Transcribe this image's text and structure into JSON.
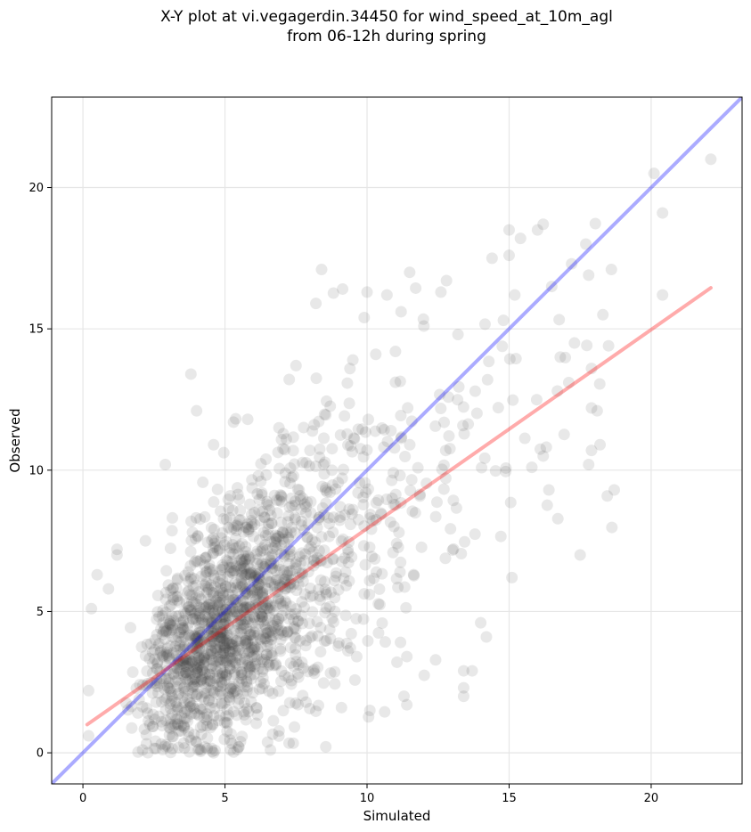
{
  "title_line1": "X-Y plot at vi.vegagerdin.34450 for wind_speed_at_10m_agl",
  "title_line2": "from 06-12h during spring",
  "chart_data": {
    "type": "scatter",
    "title": "X-Y plot at vi.vegagerdin.34450 for wind_speed_at_10m_agl from 06-12h during spring",
    "xlabel": "Simulated",
    "ylabel": "Observed",
    "xlim": [
      -1.1,
      23.2
    ],
    "ylim": [
      -1.1,
      23.2
    ],
    "xticks": [
      0,
      5,
      10,
      15,
      20
    ],
    "yticks": [
      0,
      5,
      10,
      15,
      20
    ],
    "xtick_labels": [
      "0",
      "5",
      "10",
      "15",
      "20"
    ],
    "ytick_labels": [
      "0",
      "5",
      "10",
      "15",
      "20"
    ],
    "grid": true,
    "point_color": "#404040",
    "point_alpha": 0.12,
    "lines": [
      {
        "role": "one-to-one",
        "color": "#0000ff",
        "x": [
          -1.1,
          23.2
        ],
        "y": [
          -1.1,
          23.2
        ]
      },
      {
        "role": "regression",
        "color": "#ff0000",
        "x": [
          0.15,
          22.1
        ],
        "y": [
          1.0,
          16.45
        ]
      }
    ],
    "outliers": [
      {
        "x": 22.1,
        "y": 21.0
      },
      {
        "x": 20.1,
        "y": 20.5
      },
      {
        "x": 20.4,
        "y": 19.1
      },
      {
        "x": 20.4,
        "y": 16.2
      },
      {
        "x": 16.2,
        "y": 18.7
      },
      {
        "x": 16.0,
        "y": 18.5
      },
      {
        "x": 15.4,
        "y": 18.2
      },
      {
        "x": 15.0,
        "y": 18.5
      },
      {
        "x": 17.7,
        "y": 18.0
      },
      {
        "x": 18.6,
        "y": 17.1
      },
      {
        "x": 17.8,
        "y": 16.9
      },
      {
        "x": 17.2,
        "y": 17.3
      },
      {
        "x": 16.5,
        "y": 16.5
      },
      {
        "x": 18.3,
        "y": 15.5
      },
      {
        "x": 18.5,
        "y": 14.4
      },
      {
        "x": 17.3,
        "y": 14.5
      },
      {
        "x": 17.9,
        "y": 13.6
      },
      {
        "x": 17.1,
        "y": 13.1
      },
      {
        "x": 18.7,
        "y": 9.3
      },
      {
        "x": 17.5,
        "y": 7.0
      },
      {
        "x": 18.1,
        "y": 12.1
      },
      {
        "x": 17.9,
        "y": 12.2
      },
      {
        "x": 18.2,
        "y": 10.9
      },
      {
        "x": 17.8,
        "y": 10.2
      },
      {
        "x": 17.9,
        "y": 10.7
      },
      {
        "x": 16.2,
        "y": 10.5
      },
      {
        "x": 15.8,
        "y": 10.1
      },
      {
        "x": 16.4,
        "y": 9.3
      },
      {
        "x": 15.1,
        "y": 6.2
      },
      {
        "x": 14.2,
        "y": 4.1
      },
      {
        "x": 14.0,
        "y": 4.6
      },
      {
        "x": 13.4,
        "y": 2.9
      },
      {
        "x": 13.7,
        "y": 2.9
      },
      {
        "x": 13.4,
        "y": 2.3
      },
      {
        "x": 13.4,
        "y": 2.0
      },
      {
        "x": 10.1,
        "y": 1.5
      },
      {
        "x": 11.3,
        "y": 2.0
      },
      {
        "x": 11.4,
        "y": 1.7
      },
      {
        "x": 9.1,
        "y": 1.6
      },
      {
        "x": 8.4,
        "y": 17.1
      },
      {
        "x": 8.2,
        "y": 15.9
      },
      {
        "x": 3.8,
        "y": 13.4
      },
      {
        "x": 4.0,
        "y": 12.1
      },
      {
        "x": 14.4,
        "y": 17.5
      },
      {
        "x": 15.0,
        "y": 17.6
      },
      {
        "x": 11.5,
        "y": 17.0
      },
      {
        "x": 10.0,
        "y": 16.3
      },
      {
        "x": 10.7,
        "y": 16.2
      },
      {
        "x": 2.2,
        "y": 7.5
      },
      {
        "x": 1.2,
        "y": 7.2
      },
      {
        "x": 1.2,
        "y": 7.0
      },
      {
        "x": 0.5,
        "y": 6.3
      },
      {
        "x": 0.9,
        "y": 5.8
      },
      {
        "x": 0.3,
        "y": 5.1
      },
      {
        "x": 0.2,
        "y": 2.2
      },
      {
        "x": 0.2,
        "y": 0.6
      },
      {
        "x": 2.1,
        "y": 0.1
      },
      {
        "x": 4.6,
        "y": 0.0
      },
      {
        "x": 6.6,
        "y": 0.1
      },
      {
        "x": 5.2,
        "y": 0.1
      },
      {
        "x": 2.9,
        "y": 10.2
      },
      {
        "x": 4.6,
        "y": 10.9
      },
      {
        "x": 5.3,
        "y": 11.7
      },
      {
        "x": 5.8,
        "y": 11.8
      },
      {
        "x": 9.5,
        "y": 13.9
      },
      {
        "x": 9.9,
        "y": 15.4
      },
      {
        "x": 12.6,
        "y": 16.3
      },
      {
        "x": 13.2,
        "y": 14.8
      },
      {
        "x": 15.2,
        "y": 16.2
      },
      {
        "x": 16.8,
        "y": 14.0
      },
      {
        "x": 16.7,
        "y": 12.8
      },
      {
        "x": 14.8,
        "y": 15.3
      },
      {
        "x": 7.5,
        "y": 13.7
      },
      {
        "x": 6.9,
        "y": 11.5
      },
      {
        "x": 12.0,
        "y": 15.1
      },
      {
        "x": 11.0,
        "y": 14.2
      }
    ]
  }
}
